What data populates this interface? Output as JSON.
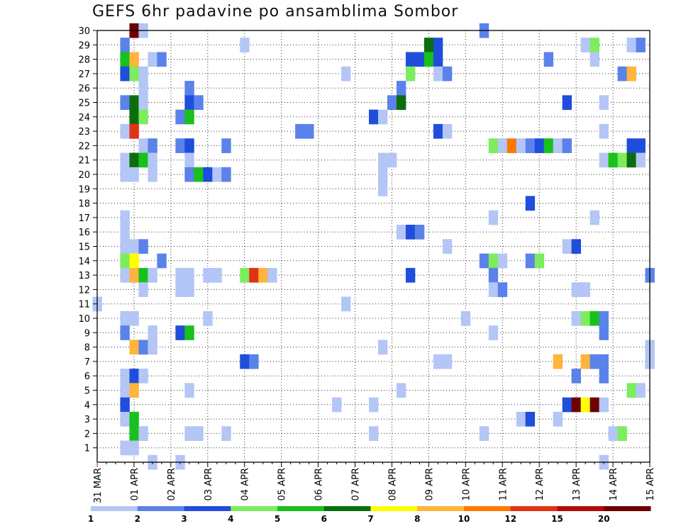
{
  "chart_data": {
    "type": "heatmap",
    "title": "GEFS 6hr padavine po ansamblima Sombor",
    "xlabel": "",
    "ylabel": "",
    "x_tick_labels": [
      "31 MAR",
      "01 APR",
      "02 APR",
      "03 APR",
      "04 APR",
      "05 APR",
      "06 APR",
      "07 APR",
      "08 APR",
      "09 APR",
      "10 APR",
      "11 APR",
      "12 APR",
      "13 APR",
      "14 APR",
      "15 APR"
    ],
    "y_tick_labels": [
      "1",
      "2",
      "3",
      "4",
      "5",
      "6",
      "7",
      "8",
      "9",
      "10",
      "11",
      "12",
      "13",
      "14",
      "15",
      "16",
      "17",
      "18",
      "19",
      "20",
      "21",
      "22",
      "23",
      "24",
      "25",
      "26",
      "27",
      "28",
      "29",
      "30"
    ],
    "x_unit": "6-hour step from 31 MAR 00z (4 steps per day)",
    "x_range": [
      0,
      60
    ],
    "y_range": [
      0,
      30.5
    ],
    "grid": true,
    "legend": {
      "position": "bottom",
      "thresholds": [
        "1",
        "2",
        "3",
        "4",
        "5",
        "6",
        "7",
        "8",
        "10",
        "12",
        "15",
        "20"
      ],
      "colors": [
        "#b3c6f5",
        "#5a82ea",
        "#1f4ddc",
        "#7ced5c",
        "#18c11c",
        "#0a6e0e",
        "#ffff00",
        "#ffb43c",
        "#ff7800",
        "#e03214",
        "#b40a0a",
        "#6e0000"
      ]
    },
    "cells": [
      [
        4,
        30,
        11
      ],
      [
        5,
        30,
        0
      ],
      [
        42,
        30,
        1
      ],
      [
        3,
        29,
        1
      ],
      [
        16,
        29,
        0
      ],
      [
        36,
        29,
        5
      ],
      [
        37,
        29,
        2
      ],
      [
        53,
        29,
        0
      ],
      [
        54,
        29,
        3
      ],
      [
        58,
        29,
        0
      ],
      [
        59,
        29,
        1
      ],
      [
        3,
        28,
        4
      ],
      [
        4,
        28,
        7
      ],
      [
        6,
        28,
        0
      ],
      [
        7,
        28,
        1
      ],
      [
        34,
        28,
        2
      ],
      [
        35,
        28,
        2
      ],
      [
        36,
        28,
        4
      ],
      [
        37,
        28,
        2
      ],
      [
        49,
        28,
        1
      ],
      [
        54,
        28,
        0
      ],
      [
        3,
        27,
        2
      ],
      [
        4,
        27,
        3
      ],
      [
        5,
        27,
        0
      ],
      [
        27,
        27,
        0
      ],
      [
        34,
        27,
        3
      ],
      [
        37,
        27,
        0
      ],
      [
        38,
        27,
        1
      ],
      [
        57,
        27,
        1
      ],
      [
        58,
        27,
        7
      ],
      [
        5,
        26,
        0
      ],
      [
        10,
        26,
        1
      ],
      [
        33,
        26,
        1
      ],
      [
        3,
        25,
        1
      ],
      [
        4,
        25,
        5
      ],
      [
        5,
        25,
        0
      ],
      [
        10,
        25,
        2
      ],
      [
        11,
        25,
        1
      ],
      [
        32,
        25,
        1
      ],
      [
        33,
        25,
        5
      ],
      [
        51,
        25,
        2
      ],
      [
        55,
        25,
        0
      ],
      [
        4,
        24,
        5
      ],
      [
        5,
        24,
        3
      ],
      [
        9,
        24,
        1
      ],
      [
        10,
        24,
        4
      ],
      [
        30,
        24,
        2
      ],
      [
        31,
        24,
        0
      ],
      [
        3,
        23,
        0
      ],
      [
        4,
        23,
        9
      ],
      [
        22,
        23,
        1
      ],
      [
        23,
        23,
        1
      ],
      [
        37,
        23,
        2
      ],
      [
        38,
        23,
        0
      ],
      [
        55,
        23,
        0
      ],
      [
        5,
        22,
        0
      ],
      [
        6,
        22,
        1
      ],
      [
        9,
        22,
        1
      ],
      [
        10,
        22,
        2
      ],
      [
        14,
        22,
        1
      ],
      [
        43,
        22,
        3
      ],
      [
        44,
        22,
        0
      ],
      [
        45,
        22,
        8
      ],
      [
        46,
        22,
        0
      ],
      [
        47,
        22,
        1
      ],
      [
        48,
        22,
        2
      ],
      [
        49,
        22,
        4
      ],
      [
        50,
        22,
        0
      ],
      [
        51,
        22,
        1
      ],
      [
        58,
        22,
        2
      ],
      [
        59,
        22,
        2
      ],
      [
        3,
        21,
        0
      ],
      [
        4,
        21,
        5
      ],
      [
        5,
        21,
        4
      ],
      [
        6,
        21,
        0
      ],
      [
        10,
        21,
        0
      ],
      [
        31,
        21,
        0
      ],
      [
        32,
        21,
        0
      ],
      [
        55,
        21,
        0
      ],
      [
        56,
        21,
        4
      ],
      [
        57,
        21,
        3
      ],
      [
        58,
        21,
        5
      ],
      [
        59,
        21,
        0
      ],
      [
        3,
        20,
        0
      ],
      [
        4,
        20,
        0
      ],
      [
        6,
        20,
        0
      ],
      [
        10,
        20,
        1
      ],
      [
        11,
        20,
        4
      ],
      [
        12,
        20,
        2
      ],
      [
        13,
        20,
        0
      ],
      [
        14,
        20,
        1
      ],
      [
        31,
        20,
        0
      ],
      [
        31,
        19,
        0
      ],
      [
        47,
        18,
        2
      ],
      [
        3,
        17,
        0
      ],
      [
        43,
        17,
        0
      ],
      [
        54,
        17,
        0
      ],
      [
        3,
        16,
        0
      ],
      [
        33,
        16,
        0
      ],
      [
        34,
        16,
        2
      ],
      [
        35,
        16,
        1
      ],
      [
        3,
        15,
        0
      ],
      [
        4,
        15,
        0
      ],
      [
        5,
        15,
        1
      ],
      [
        38,
        15,
        0
      ],
      [
        51,
        15,
        0
      ],
      [
        52,
        15,
        2
      ],
      [
        3,
        14,
        3
      ],
      [
        4,
        14,
        6
      ],
      [
        7,
        14,
        1
      ],
      [
        42,
        14,
        1
      ],
      [
        43,
        14,
        3
      ],
      [
        44,
        14,
        0
      ],
      [
        47,
        14,
        1
      ],
      [
        48,
        14,
        3
      ],
      [
        3,
        13,
        0
      ],
      [
        4,
        13,
        7
      ],
      [
        5,
        13,
        4
      ],
      [
        6,
        13,
        0
      ],
      [
        9,
        13,
        0
      ],
      [
        10,
        13,
        0
      ],
      [
        12,
        13,
        0
      ],
      [
        13,
        13,
        0
      ],
      [
        16,
        13,
        3
      ],
      [
        17,
        13,
        9
      ],
      [
        18,
        13,
        7
      ],
      [
        19,
        13,
        0
      ],
      [
        34,
        13,
        2
      ],
      [
        43,
        13,
        1
      ],
      [
        60,
        13,
        1
      ],
      [
        5,
        12,
        0
      ],
      [
        9,
        12,
        0
      ],
      [
        10,
        12,
        0
      ],
      [
        43,
        12,
        0
      ],
      [
        44,
        12,
        1
      ],
      [
        52,
        12,
        0
      ],
      [
        53,
        12,
        0
      ],
      [
        0,
        11,
        0
      ],
      [
        27,
        11,
        0
      ],
      [
        3,
        10,
        0
      ],
      [
        4,
        10,
        0
      ],
      [
        12,
        10,
        0
      ],
      [
        40,
        10,
        0
      ],
      [
        52,
        10,
        0
      ],
      [
        53,
        10,
        3
      ],
      [
        54,
        10,
        4
      ],
      [
        55,
        10,
        1
      ],
      [
        3,
        9,
        1
      ],
      [
        6,
        9,
        0
      ],
      [
        9,
        9,
        2
      ],
      [
        10,
        9,
        4
      ],
      [
        43,
        9,
        0
      ],
      [
        55,
        9,
        1
      ],
      [
        4,
        8,
        7
      ],
      [
        5,
        8,
        1
      ],
      [
        6,
        8,
        0
      ],
      [
        31,
        8,
        0
      ],
      [
        60,
        8,
        0
      ],
      [
        16,
        7,
        2
      ],
      [
        17,
        7,
        1
      ],
      [
        37,
        7,
        0
      ],
      [
        38,
        7,
        0
      ],
      [
        50,
        7,
        7
      ],
      [
        53,
        7,
        7
      ],
      [
        54,
        7,
        1
      ],
      [
        55,
        7,
        1
      ],
      [
        60,
        7,
        0
      ],
      [
        3,
        6,
        0
      ],
      [
        4,
        6,
        2
      ],
      [
        5,
        6,
        0
      ],
      [
        52,
        6,
        1
      ],
      [
        55,
        6,
        1
      ],
      [
        3,
        5,
        0
      ],
      [
        4,
        5,
        7
      ],
      [
        10,
        5,
        0
      ],
      [
        33,
        5,
        0
      ],
      [
        58,
        5,
        3
      ],
      [
        59,
        5,
        0
      ],
      [
        3,
        4,
        2
      ],
      [
        26,
        4,
        0
      ],
      [
        30,
        4,
        0
      ],
      [
        51,
        4,
        2
      ],
      [
        52,
        4,
        11
      ],
      [
        53,
        4,
        6
      ],
      [
        54,
        4,
        11
      ],
      [
        55,
        4,
        0
      ],
      [
        3,
        3,
        0
      ],
      [
        4,
        3,
        4
      ],
      [
        46,
        3,
        0
      ],
      [
        47,
        3,
        2
      ],
      [
        50,
        3,
        0
      ],
      [
        4,
        2,
        4
      ],
      [
        5,
        2,
        0
      ],
      [
        10,
        2,
        0
      ],
      [
        11,
        2,
        0
      ],
      [
        14,
        2,
        0
      ],
      [
        30,
        2,
        0
      ],
      [
        42,
        2,
        0
      ],
      [
        56,
        2,
        0
      ],
      [
        57,
        2,
        3
      ],
      [
        3,
        1,
        0
      ],
      [
        4,
        1,
        0
      ],
      [
        6,
        0,
        0
      ],
      [
        9,
        0,
        0
      ],
      [
        55,
        0,
        0
      ]
    ]
  }
}
